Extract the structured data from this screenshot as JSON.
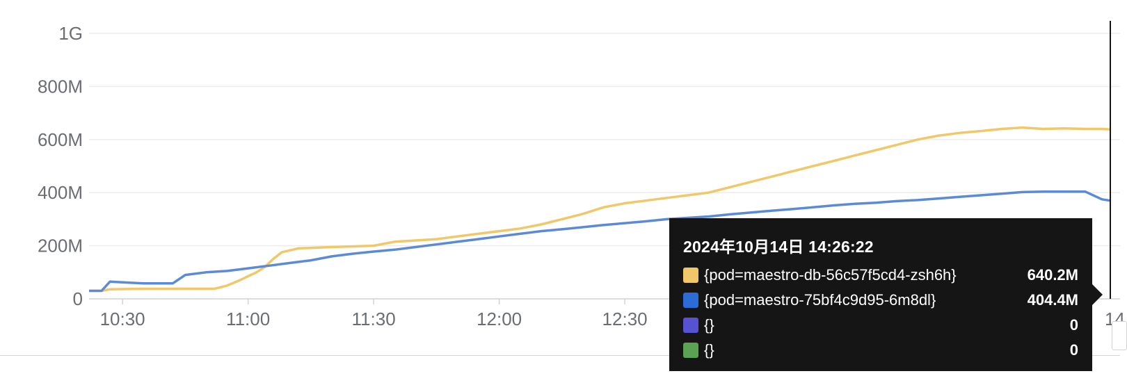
{
  "chart_data": {
    "type": "line",
    "y_ticks": [
      {
        "label": "0",
        "value": 0
      },
      {
        "label": "200M",
        "value": 200
      },
      {
        "label": "400M",
        "value": 400
      },
      {
        "label": "600M",
        "value": 600
      },
      {
        "label": "800M",
        "value": 800
      },
      {
        "label": "1G",
        "value": 1000
      }
    ],
    "x_ticks": [
      {
        "label": "10:30",
        "value": 630
      },
      {
        "label": "11:00",
        "value": 660
      },
      {
        "label": "11:30",
        "value": 690
      },
      {
        "label": "12:00",
        "value": 720
      },
      {
        "label": "12:30",
        "value": 750
      }
    ],
    "x_range_minutes": [
      622,
      866
    ],
    "y_range_megabytes": [
      0,
      1000
    ],
    "edge_tick_label": "14",
    "series": [
      {
        "name": "{pod=maestro-db-56c57f5cd4-zsh6h}",
        "color": "#f0c869",
        "x": [
          622,
          625,
          627,
          635,
          645,
          652,
          655,
          658,
          660,
          662,
          664,
          666,
          668,
          672,
          675,
          680,
          690,
          695,
          700,
          705,
          710,
          715,
          720,
          725,
          730,
          735,
          740,
          745,
          750,
          755,
          760,
          765,
          770,
          775,
          780,
          785,
          790,
          795,
          800,
          805,
          810,
          815,
          820,
          825,
          830,
          835,
          840,
          845,
          850,
          855,
          860,
          864,
          866
        ],
        "values": [
          30,
          30,
          36,
          38,
          38,
          38,
          50,
          70,
          85,
          100,
          120,
          150,
          175,
          190,
          192,
          195,
          200,
          215,
          220,
          225,
          235,
          245,
          255,
          265,
          280,
          300,
          320,
          345,
          360,
          370,
          380,
          390,
          400,
          420,
          440,
          460,
          480,
          500,
          520,
          540,
          560,
          580,
          600,
          615,
          625,
          632,
          640,
          645,
          640,
          642,
          640,
          640,
          638
        ]
      },
      {
        "name": "{pod=maestro-75bf4c9d95-6m8dl}",
        "color": "#5b8ad6",
        "x": [
          622,
          625,
          627,
          630,
          635,
          640,
          642,
          645,
          650,
          655,
          660,
          665,
          670,
          675,
          680,
          685,
          690,
          695,
          700,
          705,
          710,
          715,
          720,
          725,
          730,
          735,
          740,
          745,
          750,
          755,
          760,
          765,
          770,
          775,
          780,
          785,
          790,
          795,
          800,
          805,
          810,
          815,
          820,
          825,
          830,
          835,
          840,
          845,
          850,
          855,
          860,
          864,
          866
        ],
        "values": [
          30,
          30,
          65,
          62,
          58,
          58,
          58,
          90,
          100,
          105,
          115,
          125,
          135,
          145,
          160,
          170,
          178,
          185,
          195,
          205,
          215,
          225,
          235,
          245,
          255,
          262,
          270,
          278,
          285,
          292,
          300,
          305,
          310,
          318,
          325,
          332,
          338,
          345,
          352,
          358,
          362,
          368,
          372,
          378,
          384,
          390,
          396,
          402,
          404,
          404,
          404,
          375,
          370
        ]
      }
    ],
    "tooltip": {
      "timestamp": "2024年10月14日 14:26:22",
      "rows": [
        {
          "label": "{pod=maestro-db-56c57f5cd4-zsh6h}",
          "value": "640.2M",
          "color": "#f0c869"
        },
        {
          "label": "{pod=maestro-75bf4c9d95-6m8dl}",
          "value": "404.4M",
          "color": "#2b6cd6"
        },
        {
          "label": "{}",
          "value": "0",
          "color": "#5752d1"
        },
        {
          "label": "{}",
          "value": "0",
          "color": "#5ba352"
        }
      ]
    }
  }
}
